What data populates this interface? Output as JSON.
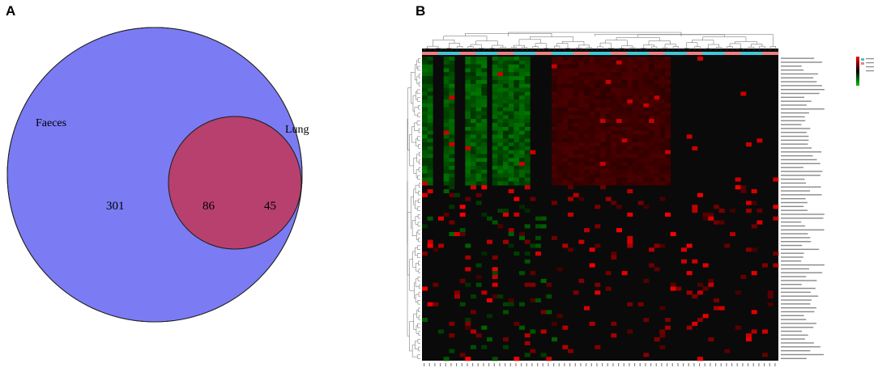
{
  "panels": {
    "a": "A",
    "b": "B"
  },
  "venn": {
    "sets": [
      {
        "name": "Faeces",
        "color": "#7b7bf4"
      },
      {
        "name": "Lung",
        "color": "#f57e7e"
      }
    ],
    "intersection_color": "#b7406f",
    "counts": {
      "faeces_only": "301",
      "both": "86",
      "lung_only": "45"
    }
  },
  "heatmap": {
    "rows": 78,
    "cols": 66,
    "color_low": "#00c000",
    "color_mid": "#000000",
    "color_high": "#ff0000",
    "group_colors": [
      "#f08080",
      "#40c8d8"
    ]
  }
}
